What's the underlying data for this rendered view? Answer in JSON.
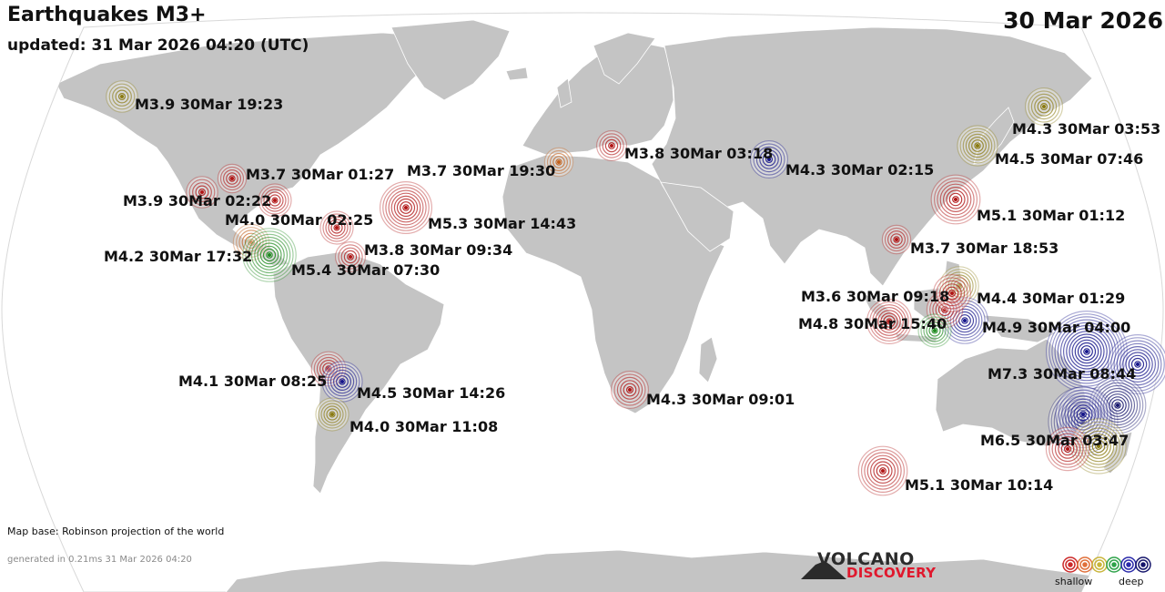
{
  "header": {
    "title": "Earthquakes M3+",
    "updated": "updated: 31 Mar 2026 04:20 (UTC)",
    "date": "30 Mar 2026"
  },
  "footer": {
    "map_base": "Map base: Robinson projection of the world",
    "generated": "generated in 0.21ms 31 Mar 2026 04:20"
  },
  "logo": {
    "line1": "VOLCANO",
    "line2": "DISCOVERY"
  },
  "legend": {
    "shallow": "shallow",
    "deep": "deep",
    "colors": [
      "#cc2a2a",
      "#e0703a",
      "#c9b53a",
      "#2fa34a",
      "#2a2aaa",
      "#15156b"
    ]
  },
  "colors": {
    "ocean": "#ffffff",
    "land": "#c4c4c4",
    "border": "#ffffff",
    "logo_red": "#e0182d"
  },
  "quakes": [
    {
      "label": "M3.9 30Mar 19:23",
      "magnitude": 3.9,
      "depth_color": "#8a7a10"
    },
    {
      "label": "M3.7 30Mar 01:27",
      "magnitude": 3.7,
      "depth_color": "#b01515"
    },
    {
      "label": "M3.9 30Mar 02:22",
      "magnitude": 3.9,
      "depth_color": "#b01515"
    },
    {
      "label": "M4.0 30Mar 02:25",
      "magnitude": 4.0,
      "depth_color": "#b01515"
    },
    {
      "label": "M4.2 30Mar 17:32",
      "magnitude": 4.2,
      "depth_color": "#c2601c"
    },
    {
      "label": "M5.4 30Mar 07:30",
      "magnitude": 5.4,
      "depth_color": "#1f8a1f"
    },
    {
      "label": "M3.8 30Mar 09:34",
      "magnitude": 3.8,
      "depth_color": "#b01515"
    },
    {
      "label": "M3.7 30Mar 19:30",
      "magnitude": 3.7,
      "depth_color": "#c2601c"
    },
    {
      "label": "M5.3 30Mar 14:43",
      "magnitude": 5.3,
      "depth_color": "#b01515"
    },
    {
      "label": "M3.8 30Mar 03:18",
      "magnitude": 3.8,
      "depth_color": "#b01515"
    },
    {
      "label": "M4.3 30Mar 02:15",
      "magnitude": 4.3,
      "depth_color": "#15158a"
    },
    {
      "label": "M4.3 30Mar 03:53",
      "magnitude": 4.3,
      "depth_color": "#8a7a10"
    },
    {
      "label": "M4.5 30Mar 07:46",
      "magnitude": 4.5,
      "depth_color": "#8a7a10"
    },
    {
      "label": "M5.1 30Mar 01:12",
      "magnitude": 5.1,
      "depth_color": "#b01515"
    },
    {
      "label": "M3.7 30Mar 18:53",
      "magnitude": 3.7,
      "depth_color": "#b01515"
    },
    {
      "label": "M3.6 30Mar 09:18",
      "magnitude": 3.6,
      "depth_color": "#b01515"
    },
    {
      "label": "M4.4 30Mar 01:29",
      "magnitude": 4.4,
      "depth_color": "#8a7a10"
    },
    {
      "label": "M4.8 30Mar 15:40",
      "magnitude": 4.8,
      "depth_color": "#b01515"
    },
    {
      "label": "M4.9 30Mar 04:00",
      "magnitude": 4.9,
      "depth_color": "#15158a"
    },
    {
      "label": "M7.3 30Mar 08:44",
      "magnitude": 7.3,
      "depth_color": "#15158a"
    },
    {
      "label": "M6.5 30Mar 03:47",
      "magnitude": 6.5,
      "depth_color": "#15156b"
    },
    {
      "label": "M5.1 30Mar 10:14",
      "magnitude": 5.1,
      "depth_color": "#b01515"
    },
    {
      "label": "M4.1 30Mar 08:25",
      "magnitude": 4.1,
      "depth_color": "#b01515"
    },
    {
      "label": "M4.5 30Mar 14:26",
      "magnitude": 4.5,
      "depth_color": "#15158a"
    },
    {
      "label": "M4.0 30Mar 11:08",
      "magnitude": 4.0,
      "depth_color": "#8a7a10"
    },
    {
      "label": "M4.3 30Mar 09:01",
      "magnitude": 4.3,
      "depth_color": "#b01515"
    }
  ],
  "extra_markers": [
    {
      "magnitude": 5.8,
      "depth_color": "#15158a"
    },
    {
      "magnitude": 5.6,
      "depth_color": "#15156b"
    },
    {
      "magnitude": 5.5,
      "depth_color": "#15158a"
    },
    {
      "magnitude": 5.5,
      "depth_color": "#8a7a10"
    },
    {
      "magnitude": 4.7,
      "depth_color": "#b01515"
    },
    {
      "magnitude": 4.2,
      "depth_color": "#b01515"
    },
    {
      "magnitude": 4.3,
      "depth_color": "#b01515"
    },
    {
      "magnitude": 4.0,
      "depth_color": "#1f8a1f"
    },
    {
      "magnitude": 4.0,
      "depth_color": "#b01515"
    }
  ]
}
